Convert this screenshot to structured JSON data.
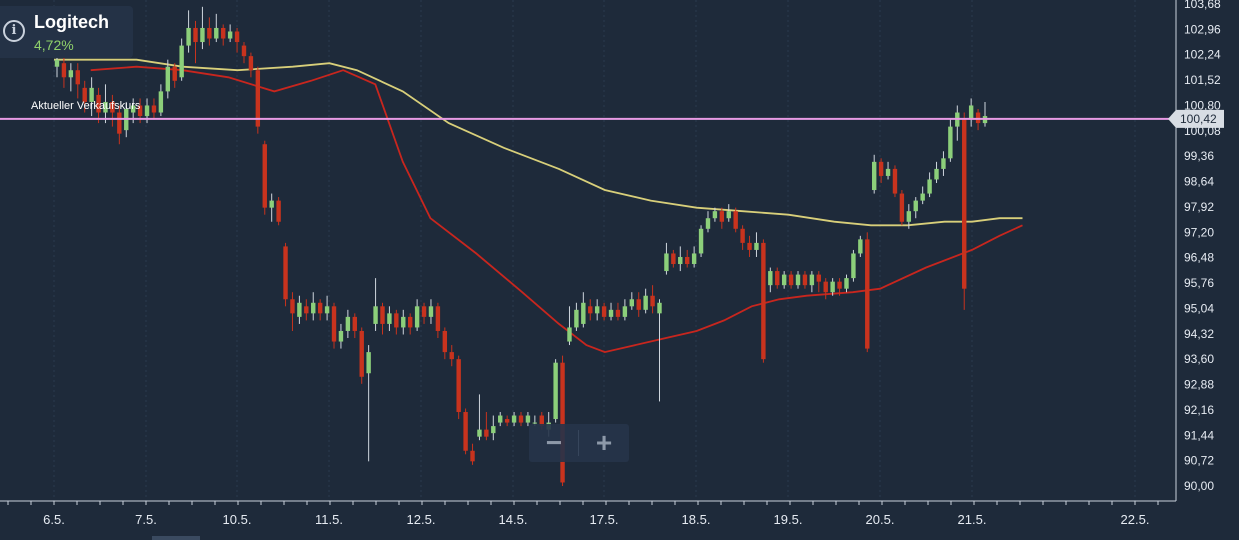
{
  "stock": {
    "name": "Logitech",
    "change": "4,72%"
  },
  "price_line_label": "Aktueller Verkaufskurs",
  "current_price_label": "100,42",
  "zoom": {
    "out_label": "−",
    "in_label": "+"
  },
  "colors": {
    "background": "#1e2a3a",
    "grid": "#2b3a4f",
    "up_candle": "#8ccf7a",
    "down_candle": "#c8331e",
    "ma_red": "#c8261e",
    "ma_yellow": "#d8cf7a",
    "price_line": "#e89ae4",
    "text": "#e6ebf2",
    "positive": "#8fd16a"
  },
  "chart_data": {
    "type": "candlestick",
    "title": "Logitech",
    "xlabel": "",
    "ylabel": "",
    "x_ticks": [
      "6.5.",
      "7.5.",
      "10.5.",
      "11.5.",
      "12.5.",
      "14.5.",
      "17.5.",
      "18.5.",
      "19.5.",
      "20.5.",
      "21.5.",
      "22.5."
    ],
    "y_ticks": [
      "103,68",
      "102,96",
      "102,24",
      "101,52",
      "100,80",
      "100,08",
      "99,36",
      "98,64",
      "97,92",
      "97,20",
      "96,48",
      "95,76",
      "95,04",
      "94,32",
      "93,60",
      "92,88",
      "92,16",
      "91,44",
      "90,72",
      "90,00"
    ],
    "ylim": [
      90.0,
      103.68
    ],
    "current_price": 100.42,
    "candles": [
      {
        "o": 101.9,
        "c": 102.1,
        "h": 102.4,
        "l": 101.6
      },
      {
        "o": 102.0,
        "c": 101.6,
        "h": 102.3,
        "l": 101.3
      },
      {
        "o": 101.6,
        "c": 101.8,
        "h": 102.0,
        "l": 101.2
      },
      {
        "o": 101.8,
        "c": 101.4,
        "h": 102.0,
        "l": 101.0
      },
      {
        "o": 101.3,
        "c": 100.9,
        "h": 101.5,
        "l": 100.6
      },
      {
        "o": 100.9,
        "c": 101.3,
        "h": 101.6,
        "l": 100.5
      },
      {
        "o": 101.1,
        "c": 100.6,
        "h": 101.3,
        "l": 100.3
      },
      {
        "o": 100.6,
        "c": 100.9,
        "h": 101.4,
        "l": 100.3
      },
      {
        "o": 100.9,
        "c": 100.6,
        "h": 101.1,
        "l": 100.2
      },
      {
        "o": 100.6,
        "c": 100.0,
        "h": 100.8,
        "l": 99.7
      },
      {
        "o": 100.1,
        "c": 100.7,
        "h": 100.9,
        "l": 99.9
      },
      {
        "o": 100.6,
        "c": 100.8,
        "h": 101.0,
        "l": 100.3
      },
      {
        "o": 100.8,
        "c": 100.5,
        "h": 101.0,
        "l": 100.3
      },
      {
        "o": 100.5,
        "c": 100.8,
        "h": 101.0,
        "l": 100.3
      },
      {
        "o": 100.8,
        "c": 100.6,
        "h": 101.0,
        "l": 100.4
      },
      {
        "o": 100.6,
        "c": 101.2,
        "h": 101.4,
        "l": 100.5
      },
      {
        "o": 101.2,
        "c": 101.9,
        "h": 102.1,
        "l": 101.0
      },
      {
        "o": 101.9,
        "c": 101.5,
        "h": 102.0,
        "l": 101.3
      },
      {
        "o": 101.6,
        "c": 102.5,
        "h": 102.7,
        "l": 101.5
      },
      {
        "o": 102.5,
        "c": 103.0,
        "h": 103.5,
        "l": 102.3
      },
      {
        "o": 103.0,
        "c": 102.6,
        "h": 103.2,
        "l": 102.0
      },
      {
        "o": 102.6,
        "c": 103.0,
        "h": 103.6,
        "l": 102.4
      },
      {
        "o": 103.0,
        "c": 102.7,
        "h": 103.3,
        "l": 102.5
      },
      {
        "o": 102.7,
        "c": 103.0,
        "h": 103.4,
        "l": 102.6
      },
      {
        "o": 103.0,
        "c": 102.7,
        "h": 103.1,
        "l": 102.5
      },
      {
        "o": 102.7,
        "c": 102.9,
        "h": 103.1,
        "l": 102.6
      },
      {
        "o": 102.9,
        "c": 102.6,
        "h": 103.0,
        "l": 102.3
      },
      {
        "o": 102.5,
        "c": 102.2,
        "h": 102.6,
        "l": 102.0
      },
      {
        "o": 102.2,
        "c": 101.8,
        "h": 102.3,
        "l": 101.6
      },
      {
        "o": 101.8,
        "c": 100.2,
        "h": 101.9,
        "l": 100.0
      },
      {
        "o": 99.7,
        "c": 97.9,
        "h": 99.8,
        "l": 97.7
      },
      {
        "o": 97.9,
        "c": 98.1,
        "h": 98.3,
        "l": 97.5
      },
      {
        "o": 98.1,
        "c": 97.5,
        "h": 98.2,
        "l": 97.4
      },
      {
        "o": 96.8,
        "c": 95.3,
        "h": 96.9,
        "l": 95.1
      },
      {
        "o": 95.3,
        "c": 94.9,
        "h": 95.5,
        "l": 94.4
      },
      {
        "o": 94.8,
        "c": 95.2,
        "h": 95.4,
        "l": 94.6
      },
      {
        "o": 95.1,
        "c": 94.9,
        "h": 95.3,
        "l": 94.7
      },
      {
        "o": 94.9,
        "c": 95.2,
        "h": 95.5,
        "l": 94.7
      },
      {
        "o": 95.2,
        "c": 94.9,
        "h": 95.3,
        "l": 94.7
      },
      {
        "o": 94.9,
        "c": 95.1,
        "h": 95.4,
        "l": 94.7
      },
      {
        "o": 95.1,
        "c": 94.1,
        "h": 95.2,
        "l": 93.9
      },
      {
        "o": 94.1,
        "c": 94.4,
        "h": 94.6,
        "l": 93.9
      },
      {
        "o": 94.4,
        "c": 94.8,
        "h": 95.0,
        "l": 94.2
      },
      {
        "o": 94.8,
        "c": 94.4,
        "h": 94.9,
        "l": 94.2
      },
      {
        "o": 94.4,
        "c": 93.1,
        "h": 94.5,
        "l": 92.9
      },
      {
        "o": 93.2,
        "c": 93.8,
        "h": 94.0,
        "l": 90.7
      },
      {
        "o": 94.6,
        "c": 95.1,
        "h": 95.9,
        "l": 94.4
      },
      {
        "o": 95.1,
        "c": 94.6,
        "h": 95.2,
        "l": 94.3
      },
      {
        "o": 94.6,
        "c": 94.9,
        "h": 95.1,
        "l": 94.4
      },
      {
        "o": 94.9,
        "c": 94.5,
        "h": 95.0,
        "l": 94.3
      },
      {
        "o": 94.5,
        "c": 94.8,
        "h": 95.0,
        "l": 94.3
      },
      {
        "o": 94.8,
        "c": 94.5,
        "h": 94.9,
        "l": 94.3
      },
      {
        "o": 94.5,
        "c": 95.1,
        "h": 95.3,
        "l": 94.4
      },
      {
        "o": 95.1,
        "c": 94.8,
        "h": 95.2,
        "l": 94.6
      },
      {
        "o": 94.8,
        "c": 95.1,
        "h": 95.3,
        "l": 94.6
      },
      {
        "o": 95.1,
        "c": 94.4,
        "h": 95.2,
        "l": 94.2
      },
      {
        "o": 94.4,
        "c": 93.8,
        "h": 94.5,
        "l": 93.6
      },
      {
        "o": 93.8,
        "c": 93.6,
        "h": 94.0,
        "l": 93.4
      },
      {
        "o": 93.6,
        "c": 92.1,
        "h": 93.7,
        "l": 91.9
      },
      {
        "o": 92.1,
        "c": 91.0,
        "h": 92.2,
        "l": 90.9
      },
      {
        "o": 91.0,
        "c": 90.7,
        "h": 91.2,
        "l": 90.6
      },
      {
        "o": 91.4,
        "c": 91.6,
        "h": 92.6,
        "l": 91.3
      },
      {
        "o": 91.6,
        "c": 91.4,
        "h": 92.1,
        "l": 91.3
      },
      {
        "o": 91.5,
        "c": 91.7,
        "h": 92.0,
        "l": 91.3
      },
      {
        "o": 91.8,
        "c": 92.0,
        "h": 92.1,
        "l": 91.7
      },
      {
        "o": 91.9,
        "c": 91.8,
        "h": 92.0,
        "l": 91.7
      },
      {
        "o": 91.8,
        "c": 92.0,
        "h": 92.1,
        "l": 91.7
      },
      {
        "o": 92.0,
        "c": 91.8,
        "h": 92.1,
        "l": 91.7
      },
      {
        "o": 91.8,
        "c": 92.0,
        "h": 92.1,
        "l": 91.7
      },
      {
        "o": 91.8,
        "c": 91.8,
        "h": 92.0,
        "l": 91.7
      },
      {
        "o": 92.0,
        "c": 91.7,
        "h": 92.1,
        "l": 91.6
      },
      {
        "o": 91.6,
        "c": 91.8,
        "h": 92.1,
        "l": 91.4
      },
      {
        "o": 91.9,
        "c": 93.5,
        "h": 93.6,
        "l": 91.8
      },
      {
        "o": 93.5,
        "c": 90.1,
        "h": 93.7,
        "l": 90.0
      },
      {
        "o": 94.1,
        "c": 94.5,
        "h": 95.1,
        "l": 94.0
      },
      {
        "o": 94.5,
        "c": 95.0,
        "h": 95.2,
        "l": 94.4
      },
      {
        "o": 94.6,
        "c": 95.2,
        "h": 95.5,
        "l": 94.5
      },
      {
        "o": 95.1,
        "c": 94.9,
        "h": 95.3,
        "l": 94.7
      },
      {
        "o": 94.9,
        "c": 95.1,
        "h": 95.3,
        "l": 94.7
      },
      {
        "o": 95.1,
        "c": 94.8,
        "h": 95.2,
        "l": 94.7
      },
      {
        "o": 94.8,
        "c": 95.0,
        "h": 95.2,
        "l": 94.7
      },
      {
        "o": 95.0,
        "c": 94.8,
        "h": 95.2,
        "l": 94.7
      },
      {
        "o": 94.8,
        "c": 95.1,
        "h": 95.3,
        "l": 94.7
      },
      {
        "o": 95.1,
        "c": 95.3,
        "h": 95.5,
        "l": 95.0
      },
      {
        "o": 95.3,
        "c": 95.0,
        "h": 95.5,
        "l": 94.8
      },
      {
        "o": 95.0,
        "c": 95.4,
        "h": 95.6,
        "l": 94.9
      },
      {
        "o": 95.4,
        "c": 95.1,
        "h": 95.7,
        "l": 94.9
      },
      {
        "o": 94.9,
        "c": 95.2,
        "h": 95.3,
        "l": 92.4
      },
      {
        "o": 96.1,
        "c": 96.6,
        "h": 96.9,
        "l": 96.0
      },
      {
        "o": 96.6,
        "c": 96.3,
        "h": 96.7,
        "l": 96.2
      },
      {
        "o": 96.3,
        "c": 96.5,
        "h": 96.8,
        "l": 96.1
      },
      {
        "o": 96.5,
        "c": 96.3,
        "h": 96.7,
        "l": 96.2
      },
      {
        "o": 96.3,
        "c": 96.6,
        "h": 96.8,
        "l": 96.2
      },
      {
        "o": 96.6,
        "c": 97.3,
        "h": 97.4,
        "l": 96.5
      },
      {
        "o": 97.3,
        "c": 97.6,
        "h": 97.8,
        "l": 97.2
      },
      {
        "o": 97.6,
        "c": 97.8,
        "h": 97.9,
        "l": 97.5
      },
      {
        "o": 97.8,
        "c": 97.5,
        "h": 97.9,
        "l": 97.3
      },
      {
        "o": 97.6,
        "c": 97.8,
        "h": 98.0,
        "l": 97.5
      },
      {
        "o": 97.8,
        "c": 97.3,
        "h": 97.9,
        "l": 97.2
      },
      {
        "o": 97.3,
        "c": 96.9,
        "h": 97.4,
        "l": 96.7
      },
      {
        "o": 96.9,
        "c": 96.7,
        "h": 97.1,
        "l": 96.5
      },
      {
        "o": 96.7,
        "c": 96.9,
        "h": 97.2,
        "l": 96.5
      },
      {
        "o": 96.9,
        "c": 93.6,
        "h": 97.0,
        "l": 93.5
      },
      {
        "o": 95.7,
        "c": 96.1,
        "h": 96.2,
        "l": 95.5
      },
      {
        "o": 96.1,
        "c": 95.7,
        "h": 96.2,
        "l": 95.6
      },
      {
        "o": 95.7,
        "c": 96.0,
        "h": 96.1,
        "l": 95.6
      },
      {
        "o": 96.0,
        "c": 95.7,
        "h": 96.1,
        "l": 95.6
      },
      {
        "o": 95.7,
        "c": 96.0,
        "h": 96.1,
        "l": 95.6
      },
      {
        "o": 96.0,
        "c": 95.7,
        "h": 96.1,
        "l": 95.6
      },
      {
        "o": 95.7,
        "c": 96.0,
        "h": 96.1,
        "l": 95.5
      },
      {
        "o": 96.0,
        "c": 95.8,
        "h": 96.1,
        "l": 95.5
      },
      {
        "o": 95.8,
        "c": 95.5,
        "h": 95.9,
        "l": 95.3
      },
      {
        "o": 95.5,
        "c": 95.8,
        "h": 95.9,
        "l": 95.4
      },
      {
        "o": 95.8,
        "c": 95.6,
        "h": 95.9,
        "l": 95.4
      },
      {
        "o": 95.6,
        "c": 95.9,
        "h": 96.0,
        "l": 95.5
      },
      {
        "o": 95.9,
        "c": 96.6,
        "h": 96.7,
        "l": 95.8
      },
      {
        "o": 96.6,
        "c": 97.0,
        "h": 97.1,
        "l": 96.5
      },
      {
        "o": 97.0,
        "c": 93.9,
        "h": 97.2,
        "l": 93.8
      },
      {
        "o": 98.4,
        "c": 99.2,
        "h": 99.4,
        "l": 98.3
      },
      {
        "o": 99.2,
        "c": 98.8,
        "h": 99.3,
        "l": 98.6
      },
      {
        "o": 98.8,
        "c": 99.0,
        "h": 99.2,
        "l": 98.7
      },
      {
        "o": 99.0,
        "c": 98.3,
        "h": 99.1,
        "l": 98.2
      },
      {
        "o": 98.3,
        "c": 97.5,
        "h": 98.4,
        "l": 97.4
      },
      {
        "o": 97.5,
        "c": 97.8,
        "h": 98.0,
        "l": 97.3
      },
      {
        "o": 97.8,
        "c": 98.1,
        "h": 98.2,
        "l": 97.6
      },
      {
        "o": 98.1,
        "c": 98.3,
        "h": 98.5,
        "l": 98.0
      },
      {
        "o": 98.3,
        "c": 98.7,
        "h": 98.9,
        "l": 98.2
      },
      {
        "o": 98.7,
        "c": 99.0,
        "h": 99.2,
        "l": 98.6
      },
      {
        "o": 99.0,
        "c": 99.3,
        "h": 99.5,
        "l": 98.8
      },
      {
        "o": 99.3,
        "c": 100.2,
        "h": 100.4,
        "l": 99.2
      },
      {
        "o": 100.2,
        "c": 100.6,
        "h": 100.8,
        "l": 99.8
      },
      {
        "o": 100.4,
        "c": 95.6,
        "h": 100.6,
        "l": 95.0
      },
      {
        "o": 100.4,
        "c": 100.8,
        "h": 101.0,
        "l": 100.2
      },
      {
        "o": 100.6,
        "c": 100.3,
        "h": 100.7,
        "l": 100.1
      },
      {
        "o": 100.3,
        "c": 100.5,
        "h": 100.9,
        "l": 100.2
      }
    ],
    "moving_averages": [
      {
        "color": "#c8261e",
        "points": [
          [
            0.4,
            101.8
          ],
          [
            0.9,
            101.9
          ],
          [
            1.4,
            101.8
          ],
          [
            1.9,
            101.6
          ],
          [
            2.4,
            101.2
          ],
          [
            2.8,
            101.5
          ],
          [
            3.15,
            101.8
          ],
          [
            3.5,
            101.4
          ],
          [
            3.8,
            99.2
          ],
          [
            4.1,
            97.6
          ],
          [
            4.6,
            96.6
          ],
          [
            5.1,
            95.5
          ],
          [
            5.5,
            94.6
          ],
          [
            5.8,
            94.0
          ],
          [
            6.0,
            93.8
          ],
          [
            6.5,
            94.1
          ],
          [
            7.0,
            94.4
          ],
          [
            7.3,
            94.7
          ],
          [
            7.6,
            95.1
          ],
          [
            7.9,
            95.3
          ],
          [
            8.2,
            95.4
          ],
          [
            8.7,
            95.5
          ],
          [
            9.0,
            95.6
          ],
          [
            9.5,
            96.2
          ],
          [
            10.0,
            96.7
          ],
          [
            10.3,
            97.1
          ],
          [
            10.55,
            97.4
          ]
        ]
      },
      {
        "color": "#d8cf7a",
        "points": [
          [
            0.0,
            102.1
          ],
          [
            0.9,
            102.1
          ],
          [
            1.4,
            101.9
          ],
          [
            2.0,
            101.8
          ],
          [
            2.6,
            101.9
          ],
          [
            3.0,
            102.0
          ],
          [
            3.3,
            101.8
          ],
          [
            3.8,
            101.2
          ],
          [
            4.3,
            100.3
          ],
          [
            4.9,
            99.6
          ],
          [
            5.5,
            99.0
          ],
          [
            6.0,
            98.4
          ],
          [
            6.5,
            98.1
          ],
          [
            7.0,
            97.9
          ],
          [
            7.5,
            97.8
          ],
          [
            8.0,
            97.7
          ],
          [
            8.5,
            97.5
          ],
          [
            8.9,
            97.4
          ],
          [
            9.3,
            97.4
          ],
          [
            9.7,
            97.5
          ],
          [
            10.0,
            97.5
          ],
          [
            10.3,
            97.6
          ],
          [
            10.55,
            97.6
          ]
        ]
      }
    ]
  }
}
